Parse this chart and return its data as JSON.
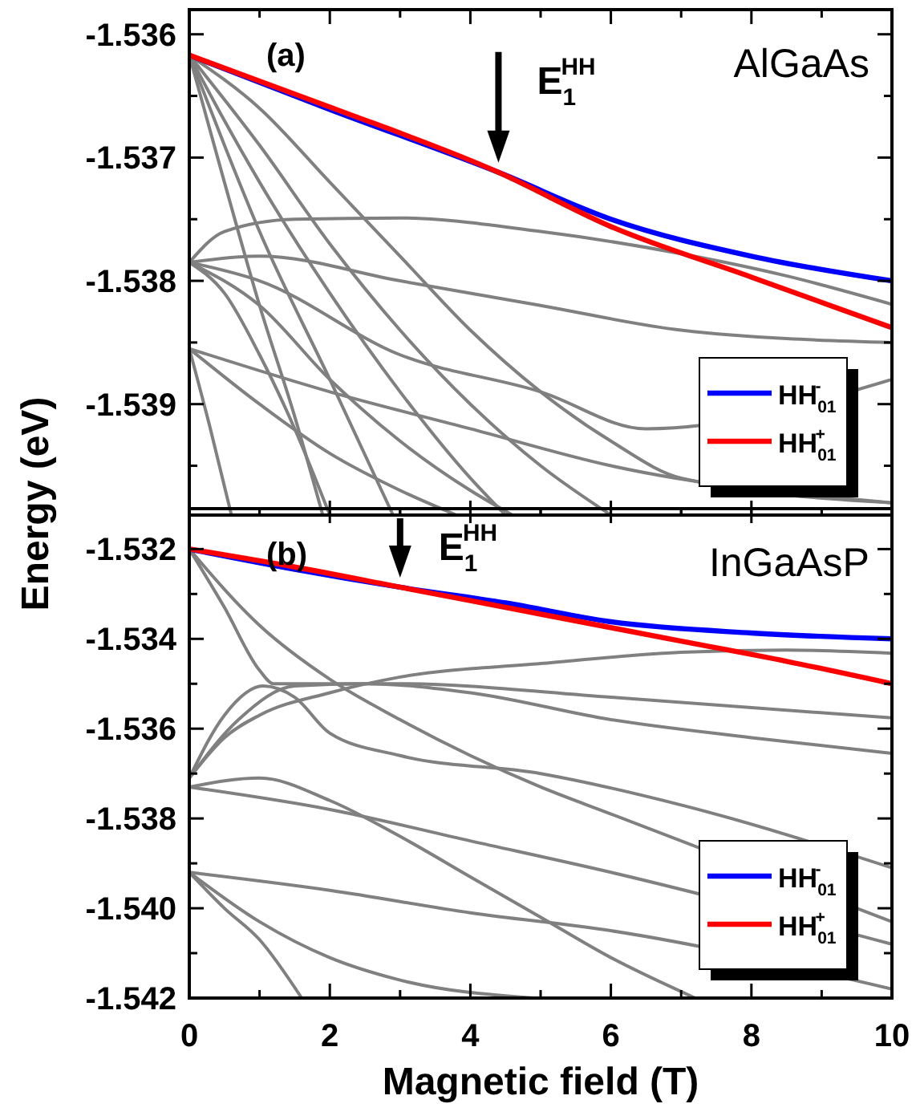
{
  "chart_data": [
    {
      "type": "line",
      "ylabel": "Energy (eV)",
      "xlim": [
        0,
        10
      ],
      "xticks": [
        0,
        {
          "value": 1,
          "label": null
        },
        2,
        {
          "value": 3,
          "label": null
        },
        4,
        {
          "value": 5,
          "label": null
        },
        6,
        {
          "value": 7,
          "label": null
        },
        8,
        {
          "value": 9,
          "label": null
        },
        10
      ],
      "ylim": [
        -1.5399,
        -1.5358
      ],
      "yticks": [
        -1.536,
        {
          "value": -1.5365,
          "label": null
        },
        -1.537,
        {
          "value": -1.5375,
          "label": null
        },
        -1.538,
        {
          "value": -1.5385,
          "label": null
        },
        -1.539,
        {
          "value": -1.5395,
          "label": null
        }
      ],
      "tick_labels": "y",
      "grid": false,
      "legend": "bottom right",
      "marker": "none",
      "line_style": "solid",
      "annotations": [
        "(a)",
        {
          "text": "E$_{1}$$^{HH}$",
          "x": 4.4,
          "y": -1.53712
        },
        "AlGaAs"
      ],
      "series": [
        {
          "color": "#808080",
          "x": [
            0,
            0.5,
            1,
            1.5,
            1.9
          ],
          "values": [
            -1.53617,
            -1.5372,
            -1.5382,
            -1.5391,
            -1.5399
          ]
        },
        {
          "color": "#808080",
          "x": [
            0,
            0.5,
            1,
            2,
            2.9
          ],
          "values": [
            -1.53617,
            -1.5369,
            -1.5376,
            -1.5388,
            -1.5399
          ]
        },
        {
          "color": "#808080",
          "x": [
            0,
            0.5,
            1,
            2,
            3,
            4,
            4.5
          ],
          "values": [
            -1.53617,
            -1.5367,
            -1.5372,
            -1.5381,
            -1.5389,
            -1.5396,
            -1.5399
          ]
        },
        {
          "color": "#808080",
          "x": [
            0,
            1,
            2,
            3,
            4,
            5,
            6
          ],
          "values": [
            -1.53617,
            -1.5369,
            -1.5377,
            -1.5384,
            -1.539,
            -1.5395,
            -1.5399
          ]
        },
        {
          "color": "#808080",
          "x": [
            0,
            1,
            2,
            3,
            4,
            5,
            6,
            7,
            8,
            10
          ],
          "values": [
            -1.53617,
            -1.5366,
            -1.5372,
            -1.5378,
            -1.5384,
            -1.5389,
            -1.5393,
            -1.5396,
            null,
            -1.5398
          ]
        },
        {
          "color": "#808080",
          "x": [
            0,
            0.5,
            1.5,
            3,
            5,
            7,
            8.5,
            10
          ],
          "values": [
            -1.53785,
            -1.5376,
            -1.5375,
            -1.53749,
            -1.5376,
            -1.53778,
            -1.53796,
            -1.53819
          ]
        },
        {
          "color": "#808080",
          "x": [
            0,
            1,
            3,
            5,
            7,
            10
          ],
          "values": [
            -1.53785,
            -1.5378,
            -1.538,
            -1.5382,
            -1.5384,
            -1.5385
          ]
        },
        {
          "color": "#808080",
          "x": [
            0,
            1,
            3,
            5,
            6.5,
            8,
            10
          ],
          "values": [
            -1.53785,
            -1.538,
            -1.5386,
            -1.5389,
            -1.5392,
            null,
            -1.5388
          ]
        },
        {
          "color": "#808080",
          "x": [
            0,
            1,
            2,
            3,
            4,
            4.6
          ],
          "values": [
            -1.53785,
            -1.5382,
            -1.5388,
            -1.5393,
            -1.5397,
            -1.5399
          ]
        },
        {
          "color": "#808080",
          "x": [
            0,
            0.5,
            1,
            1.5,
            2
          ],
          "values": [
            -1.53785,
            -1.5381,
            -1.5386,
            -1.5392,
            -1.5399
          ]
        },
        {
          "color": "#808080",
          "x": [
            0,
            2,
            4,
            6,
            8,
            10
          ],
          "values": [
            -1.53855,
            -1.5389,
            -1.5392,
            -1.5395,
            null,
            -1.5398
          ]
        },
        {
          "color": "#808080",
          "x": [
            0,
            0.3,
            0.6
          ],
          "values": [
            -1.53855,
            -1.5392,
            -1.5399
          ]
        },
        {
          "color": "#808080",
          "x": [
            0,
            1,
            2,
            3,
            3.8
          ],
          "values": [
            -1.53855,
            -1.539,
            -1.5394,
            -1.5397,
            -1.5399
          ]
        },
        {
          "name": "HH$_{01}$$^{-}$",
          "color": "#0000ff",
          "x": [
            0,
            2,
            4.4,
            6,
            8,
            10
          ],
          "values": [
            -1.53617,
            -1.53661,
            -1.53712,
            -1.5375,
            -1.5378,
            -1.538
          ]
        },
        {
          "name": "HH$_{01}$$^{+}$",
          "color": "#ff0000",
          "x": [
            0,
            2,
            4.4,
            6,
            8,
            10
          ],
          "values": [
            -1.53617,
            -1.53659,
            -1.53712,
            -1.53756,
            -1.53797,
            -1.53838
          ]
        }
      ]
    },
    {
      "type": "line",
      "xlabel": "Magnetic field (T)",
      "xlim": [
        0,
        10
      ],
      "xticks": [
        0,
        {
          "value": 1,
          "label": null
        },
        2,
        {
          "value": 3,
          "label": null
        },
        4,
        {
          "value": 5,
          "label": null
        },
        6,
        {
          "value": 7,
          "label": null
        },
        8,
        {
          "value": 9,
          "label": null
        },
        10
      ],
      "ylim": [
        -1.542,
        -1.5311
      ],
      "yticks": [
        -1.532,
        {
          "value": -1.533,
          "label": null
        },
        -1.534,
        {
          "value": -1.535,
          "label": null
        },
        -1.536,
        {
          "value": -1.537,
          "label": null
        },
        -1.538,
        {
          "value": -1.539,
          "label": null
        },
        {
          "value": -1.54,
          "label": "-1.540"
        },
        {
          "value": -1.541,
          "label": null
        },
        -1.542
      ],
      "grid": false,
      "legend": "bottom right",
      "marker": "none",
      "line_style": "solid",
      "annotations": [
        "(b)",
        {
          "text": "E$_{1}$$^{HH}$",
          "x": 3,
          "y": -1.53285
        },
        "InGaAsP"
      ],
      "series": [
        {
          "color": "#808080",
          "x": [
            0,
            0.5,
            1,
            2,
            3,
            5,
            7,
            8.5,
            10
          ],
          "values": [
            -1.5371,
            -1.5362,
            -1.5357,
            -1.5352,
            -1.53485,
            -1.53455,
            -1.5343,
            -1.53425,
            -1.53432
          ]
        },
        {
          "color": "#808080",
          "x": [
            0,
            0.5,
            1,
            1.2,
            3,
            6,
            10
          ],
          "values": [
            -1.532,
            -1.5333,
            -1.5347,
            -1.535,
            -1.535,
            -1.5353,
            -1.53576
          ]
        },
        {
          "color": "#808080",
          "x": [
            0,
            0.5,
            1.05,
            1.5,
            2,
            3,
            5,
            7,
            10
          ],
          "values": [
            -1.5371,
            -1.5357,
            -1.53505,
            -1.5353,
            -1.5361,
            -1.5366,
            -1.537,
            -1.5377,
            -1.5391
          ]
        },
        {
          "color": "#808080",
          "x": [
            0,
            0.7,
            1.5,
            2.5,
            4,
            6,
            8,
            10
          ],
          "values": [
            -1.5371,
            -1.5358,
            -1.53505,
            -1.535,
            -1.5352,
            -1.5358,
            -1.5362,
            -1.53655
          ]
        },
        {
          "color": "#808080",
          "x": [
            0,
            1,
            2,
            3,
            4,
            5,
            6,
            8,
            10
          ],
          "values": [
            -1.532,
            -1.5337,
            -1.5349,
            -1.5358,
            -1.5366,
            -1.5373,
            -1.5379,
            null,
            -1.5403
          ]
        },
        {
          "color": "#808080",
          "x": [
            0,
            1,
            2,
            3,
            4,
            5,
            6,
            7.2
          ],
          "values": [
            -1.5373,
            -1.5371,
            -1.5376,
            -1.5384,
            -1.5393,
            -1.5402,
            -1.5411,
            -1.542
          ]
        },
        {
          "color": "#808080",
          "x": [
            0,
            2,
            4,
            6,
            8,
            10
          ],
          "values": [
            -1.5373,
            -1.5378,
            -1.5385,
            -1.5392,
            null,
            -1.5408
          ]
        },
        {
          "color": "#808080",
          "x": [
            0,
            2,
            4,
            6,
            8,
            10
          ],
          "values": [
            -1.5392,
            -1.5396,
            -1.5401,
            -1.5405,
            null,
            -1.5418
          ]
        },
        {
          "color": "#808080",
          "x": [
            0,
            0.5,
            1,
            1.6
          ],
          "values": [
            -1.5392,
            -1.54,
            -1.5407,
            -1.542
          ]
        },
        {
          "color": "#808080",
          "x": [
            0,
            1,
            2,
            3,
            4.9
          ],
          "values": [
            -1.5392,
            -1.5403,
            -1.5411,
            -1.5416,
            -1.542
          ]
        },
        {
          "name": "HH$_{01}$$^{-}$",
          "color": "#0000ff",
          "x": [
            0,
            1.5,
            3,
            4.5,
            6,
            8,
            10
          ],
          "values": [
            -1.532,
            -1.53245,
            -1.53285,
            -1.5332,
            -1.53362,
            -1.53387,
            -1.534
          ]
        },
        {
          "name": "HH$_{01}$$^{+}$",
          "color": "#ff0000",
          "x": [
            0,
            1.5,
            3,
            5,
            7,
            8.5,
            10
          ],
          "values": [
            -1.532,
            -1.5324,
            -1.53285,
            -1.53345,
            -1.53405,
            -1.5345,
            -1.535
          ]
        }
      ]
    }
  ]
}
